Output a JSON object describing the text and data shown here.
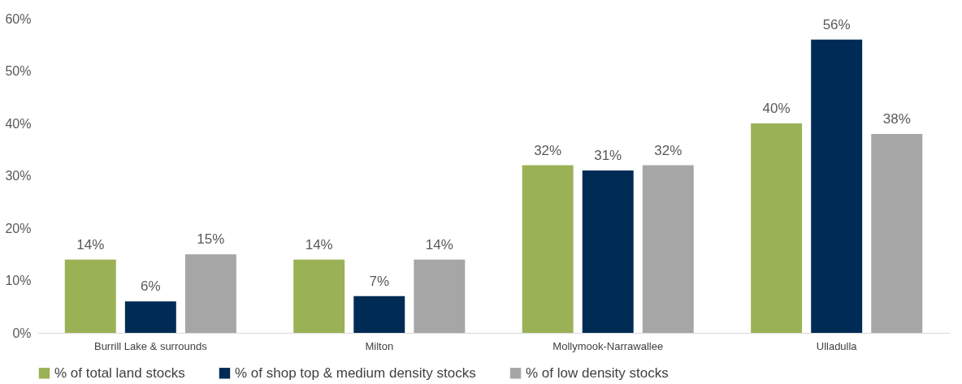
{
  "chart_data": {
    "type": "bar",
    "categories": [
      "Burrill Lake & surrounds",
      "Milton",
      "Mollymook-Narrawallee",
      "Ulladulla"
    ],
    "series": [
      {
        "name": "% of total land stocks",
        "color": "#9bb155",
        "values": [
          14,
          14,
          32,
          40
        ],
        "value_labels": [
          "14%",
          "14%",
          "32%",
          "40%"
        ]
      },
      {
        "name": "% of shop top & medium density stocks",
        "color": "#002b55",
        "values": [
          6,
          7,
          31,
          56
        ],
        "value_labels": [
          "6%",
          "7%",
          "31%",
          "56%"
        ]
      },
      {
        "name": "% of low density stocks",
        "color": "#a6a6a6",
        "values": [
          15,
          14,
          32,
          38
        ],
        "value_labels": [
          "15%",
          "14%",
          "32%",
          "38%"
        ]
      }
    ],
    "ylim": [
      0,
      60
    ],
    "yticks": [
      {
        "value": 0,
        "label": "0%"
      },
      {
        "value": 10,
        "label": "10%"
      },
      {
        "value": 20,
        "label": "20%"
      },
      {
        "value": 30,
        "label": "30%"
      },
      {
        "value": 40,
        "label": "40%"
      },
      {
        "value": 50,
        "label": "50%"
      },
      {
        "value": 60,
        "label": "60%"
      }
    ],
    "grid": false,
    "legend": "bottom"
  }
}
